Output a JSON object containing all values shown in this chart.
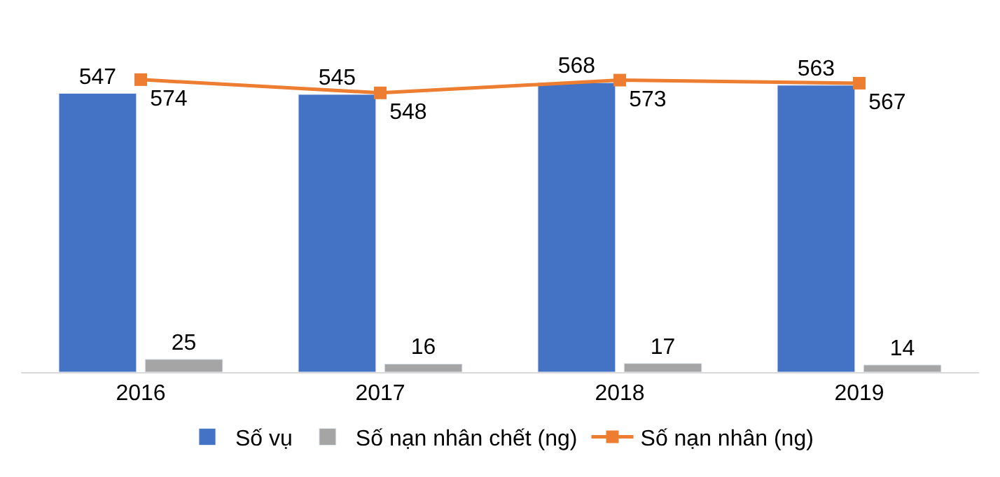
{
  "chart_data": {
    "type": "bar",
    "categories": [
      "2016",
      "2017",
      "2018",
      "2019"
    ],
    "series": [
      {
        "name": "Số vụ",
        "color": "#4472c4",
        "values": [
          547,
          545,
          568,
          563
        ]
      },
      {
        "name": "Số nạn nhân chết (ng)",
        "color": "#a5a5a5",
        "values": [
          25,
          16,
          17,
          14
        ]
      },
      {
        "name": "Số nạn nhân (ng)",
        "color": "#ed7d31",
        "type": "line",
        "marker": "square",
        "values": [
          574,
          548,
          573,
          567
        ]
      }
    ],
    "tick_labels": "x",
    "data_labels": true,
    "legend": "bottom"
  }
}
